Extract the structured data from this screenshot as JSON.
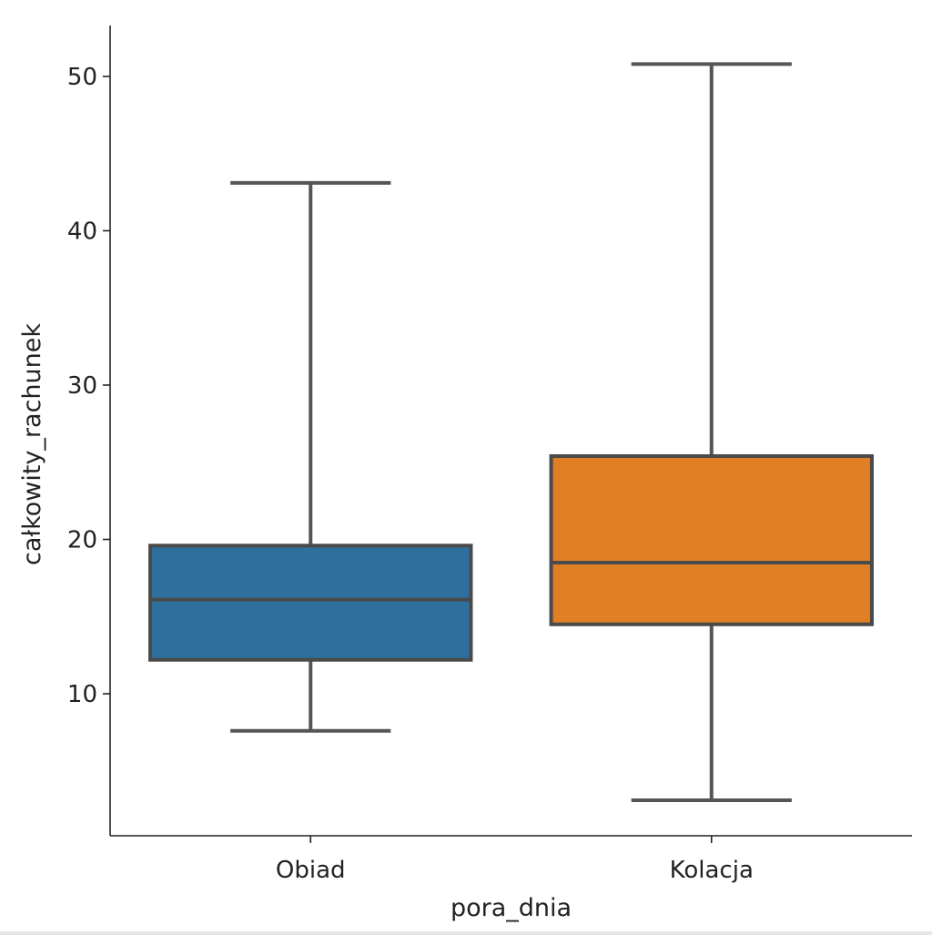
{
  "chart_data": {
    "type": "box",
    "xlabel": "pora_dnia",
    "ylabel": "całkowity_rachunek",
    "categories": [
      "Obiad",
      "Kolacja"
    ],
    "ylim": [
      0.8,
      53.3
    ],
    "yticks": [
      10,
      20,
      30,
      40,
      50
    ],
    "colors": [
      "#2e6f9e",
      "#e07f26"
    ],
    "boxes": [
      {
        "category": "Obiad",
        "whisker_low": 7.6,
        "q1": 12.2,
        "median": 16.1,
        "q3": 19.6,
        "whisker_high": 43.1
      },
      {
        "category": "Kolacja",
        "whisker_low": 3.1,
        "q1": 14.5,
        "median": 18.5,
        "q3": 25.4,
        "whisker_high": 50.8
      }
    ],
    "grid": false,
    "legend": "none"
  }
}
